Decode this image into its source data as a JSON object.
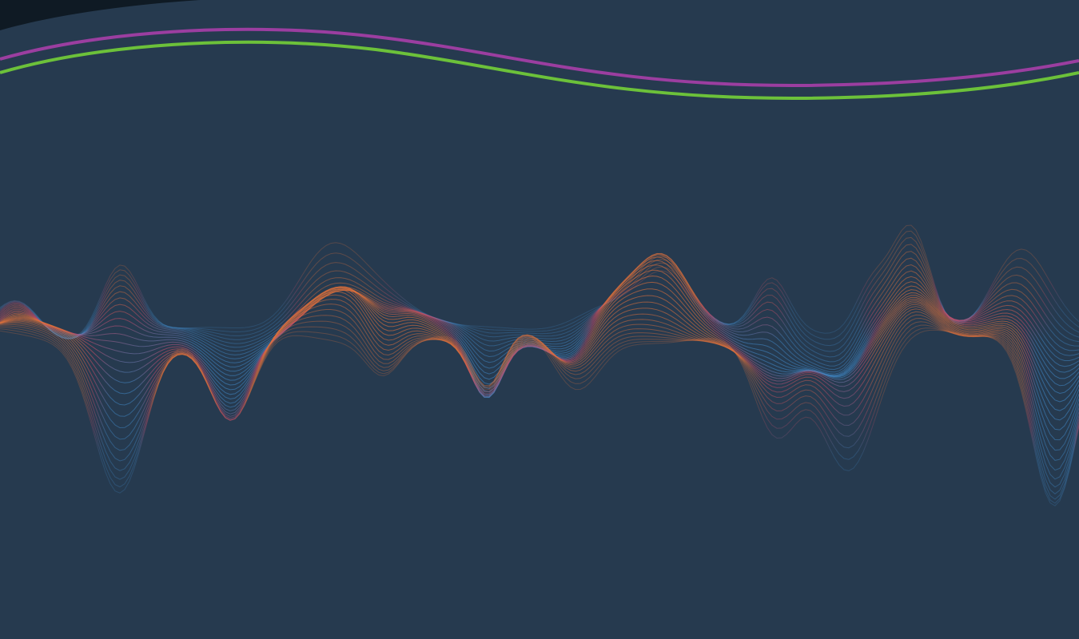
{
  "scene": {
    "description_tag": "decorative-hero-background",
    "colors": {
      "background": "#263a4f",
      "corner": "#0f1a24",
      "stripe_top": "#9b3ea0",
      "stripe_bottom": "#6cc13a",
      "wave_warm": "#e0703a",
      "wave_mid": "#c94a6a",
      "wave_cool": "#3f86c4"
    },
    "wave_layers": 28
  }
}
